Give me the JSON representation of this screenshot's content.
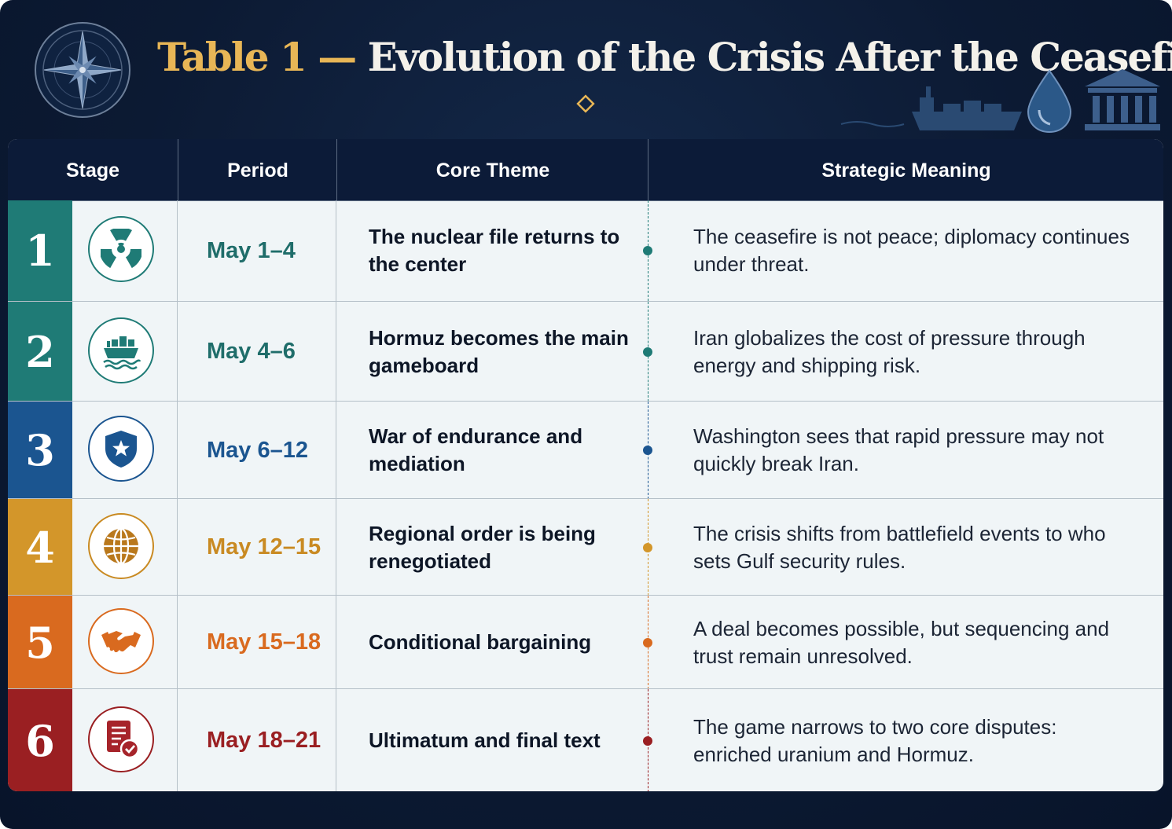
{
  "header": {
    "title_prefix": "Table 1 —",
    "title_main": "Evolution of the Crisis After the Ceasefire"
  },
  "colors": {
    "navy": "#0c1b38",
    "gold": "#e8b656",
    "teal": "#1f7b76",
    "blue": "#1b5590",
    "amber": "#d3962a",
    "orange": "#d96a1f",
    "red": "#9a1f22"
  },
  "columns": [
    "Stage",
    "Period",
    "Core Theme",
    "Strategic Meaning"
  ],
  "rows": [
    {
      "stage": "1",
      "icon": "radiation-icon",
      "color": "#1f7b76",
      "period": "May 1–4",
      "theme": "The nuclear file returns to the center",
      "meaning": "The ceasefire is not peace; diplomacy continues under threat."
    },
    {
      "stage": "2",
      "icon": "cargo-ship-icon",
      "color": "#1f7b76",
      "period": "May 4–6",
      "theme": "Hormuz becomes the main gameboard",
      "meaning": "Iran globalizes the cost of pressure through energy and shipping risk."
    },
    {
      "stage": "3",
      "icon": "shield-star-icon",
      "color": "#1b5590",
      "period": "May 6–12",
      "theme": "War of endurance and mediation",
      "meaning": "Washington sees that rapid pressure may not quickly break Iran."
    },
    {
      "stage": "4",
      "icon": "globe-icon",
      "color": "#d3962a",
      "period": "May 12–15",
      "theme": "Regional order is being renegotiated",
      "meaning": "The crisis shifts from battlefield events to who sets Gulf security rules."
    },
    {
      "stage": "5",
      "icon": "handshake-icon",
      "color": "#d96a1f",
      "period": "May 15–18",
      "theme": "Conditional bargaining",
      "meaning": "A deal becomes possible, but sequencing and trust remain unresolved."
    },
    {
      "stage": "6",
      "icon": "document-check-icon",
      "color": "#9a1f22",
      "period": "May 18–21",
      "theme": "Ultimatum and final text",
      "meaning": "The game narrows to two core disputes: enriched uranium and Hormuz."
    }
  ]
}
